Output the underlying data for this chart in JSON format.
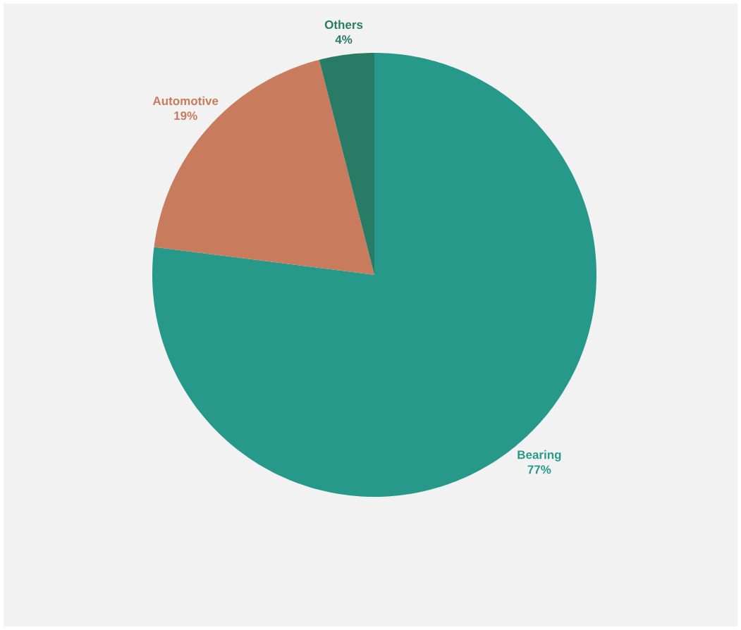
{
  "chart_data": {
    "type": "pie",
    "categories": [
      "Bearing",
      "Automotive",
      "Others"
    ],
    "values": [
      77,
      19,
      4
    ],
    "colors": [
      "#26998a",
      "#c97b5e",
      "#287c65"
    ],
    "value_labels": [
      "77%",
      "19%",
      "4%"
    ]
  }
}
